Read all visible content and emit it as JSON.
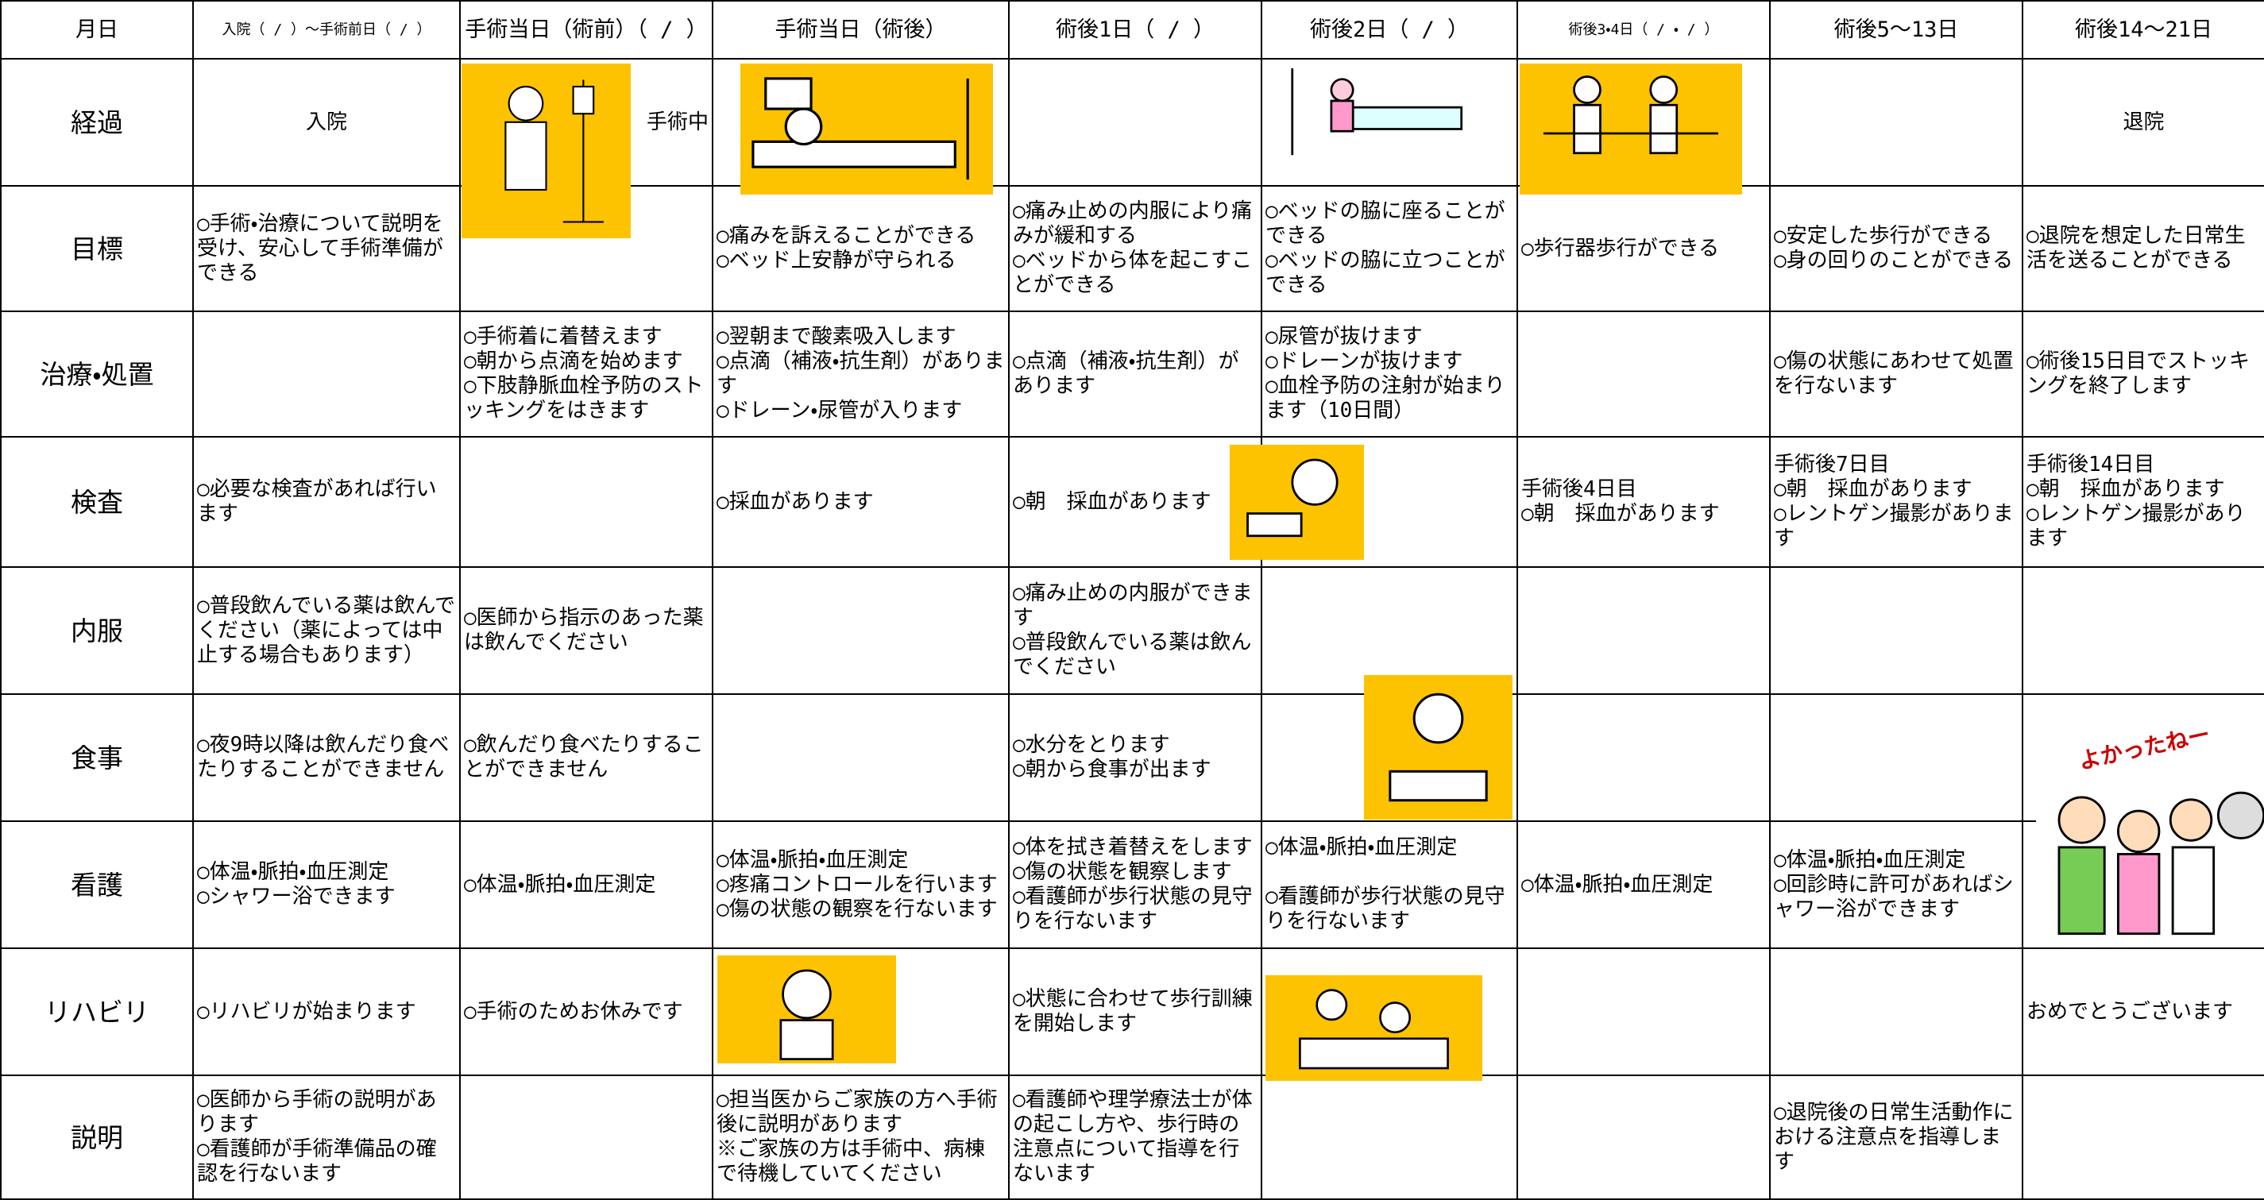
{
  "header": [
    "月日",
    "入院（ / ）～手術前日（ / ）",
    "手術当日（術前）（ / ）",
    "手術当日（術後）",
    "術後1日（ / ）",
    "術後2日（ / ）",
    "術後3・4日（ / ・ / ）",
    "術後5～13日",
    "術後14～21日"
  ],
  "rows": [
    {
      "label": "経過",
      "cells": [
        [
          "入院"
        ],
        [
          "手術中"
        ],
        null,
        null,
        null,
        null,
        null,
        [
          "退院"
        ]
      ]
    },
    {
      "label": "目標",
      "cells": [
        [
          "○手術・治療について説明を受け、安心して手術準備ができる"
        ],
        null,
        [
          "○痛みを訴えることができる",
          "○ベッド上安静が守られる"
        ],
        [
          "○痛み止めの内服により痛みが緩和する",
          "○ベッドから体を起こすことができる"
        ],
        [
          "○ベッドの脇に座ることができる",
          "○ベッドの脇に立つことができる"
        ],
        [
          "○歩行器歩行ができる"
        ],
        [
          "○安定した歩行ができる",
          "○身の回りのことができる"
        ],
        [
          "○退院を想定した日常生活を送ることができる"
        ]
      ]
    },
    {
      "label": "治療・処置",
      "cells": [
        null,
        [
          "○手術着に着替えます",
          "○朝から点滴を始めます",
          "○下肢静脈血栓予防のストッキングをはきます"
        ],
        [
          "○翌朝まで酸素吸入します",
          "○点滴（補液・抗生剤）があります",
          "○ドレーン・尿管が入ります"
        ],
        [
          "○点滴（補液・抗生剤）があります"
        ],
        [
          "○尿管が抜けます",
          "○ドレーンが抜けます",
          "○血栓予防の注射が始まります（10日間）"
        ],
        null,
        [
          "○傷の状態にあわせて処置を行ないます"
        ],
        [
          "○術後15日目でストッキングを終了します"
        ]
      ]
    },
    {
      "label": "検査",
      "cells": [
        [
          "○必要な検査があれば行います"
        ],
        null,
        [
          "○採血があります"
        ],
        [
          "○朝　採血があります"
        ],
        null,
        [
          "手術後4日目",
          "○朝　採血があります"
        ],
        [
          "手術後7日目",
          "○朝　採血があります",
          "○レントゲン撮影があります"
        ],
        [
          "手術後14日目",
          "○朝　採血があります",
          "○レントゲン撮影があります"
        ]
      ]
    },
    {
      "label": "内服",
      "cells": [
        [
          "○普段飲んでいる薬は飲んでください（薬によっては中止する場合もあります）"
        ],
        [
          "○医師から指示のあった薬は飲んでください"
        ],
        null,
        [
          "○痛み止めの内服ができます",
          "○普段飲んでいる薬は飲んでください"
        ],
        null,
        null,
        null,
        null
      ]
    },
    {
      "label": "食事",
      "cells": [
        [
          "○夜9時以降は飲んだり食べたりすることができません"
        ],
        [
          "○飲んだり食べたりすることができません"
        ],
        null,
        [
          "○水分をとります",
          "○朝から食事が出ます"
        ],
        null,
        null,
        null,
        null
      ]
    },
    {
      "label": "看護",
      "cells": [
        [
          "○体温・脈拍・血圧測定",
          "○シャワー浴できます"
        ],
        [
          "○体温・脈拍・血圧測定"
        ],
        [
          "○体温・脈拍・血圧測定",
          "○疼痛コントロールを行います",
          "○傷の状態の観察を行ないます"
        ],
        [
          "○体を拭き着替えをします",
          "○傷の状態を観察します",
          "○看護師が歩行状態の見守りを行ないます"
        ],
        [
          "○体温・脈拍・血圧測定",
          "○看護師が歩行状態の見守りを行ないます"
        ],
        [
          "○体温・脈拍・血圧測定"
        ],
        [
          "○体温・脈拍・血圧測定",
          "○回診時に許可があればシャワー浴ができます"
        ],
        null
      ]
    },
    {
      "label": "リハビリ",
      "cells": [
        [
          "○リハビリが始まります"
        ],
        [
          "○手術のためお休みです"
        ],
        null,
        [
          "○状態に合わせて歩行訓練を開始します"
        ],
        null,
        null,
        null,
        [
          "おめでとうございます"
        ]
      ]
    },
    {
      "label": "説明",
      "cells": [
        [
          "○医師から手術の説明があります",
          "○看護師が手術準備品の確認を行ないます"
        ],
        null,
        [
          "○担当医からご家族の方へ手術後に説明があります",
          "※ご家族の方は手術中、病棟で待機していてください"
        ],
        [
          "○看護師や理学療法士が体の起こし方や、歩行時の注意点について指導を行ないます"
        ],
        null,
        null,
        [
          "○退院後の日常生活動作における注意点を指導します"
        ],
        null
      ]
    }
  ],
  "illustration_caption": "よかったねー"
}
